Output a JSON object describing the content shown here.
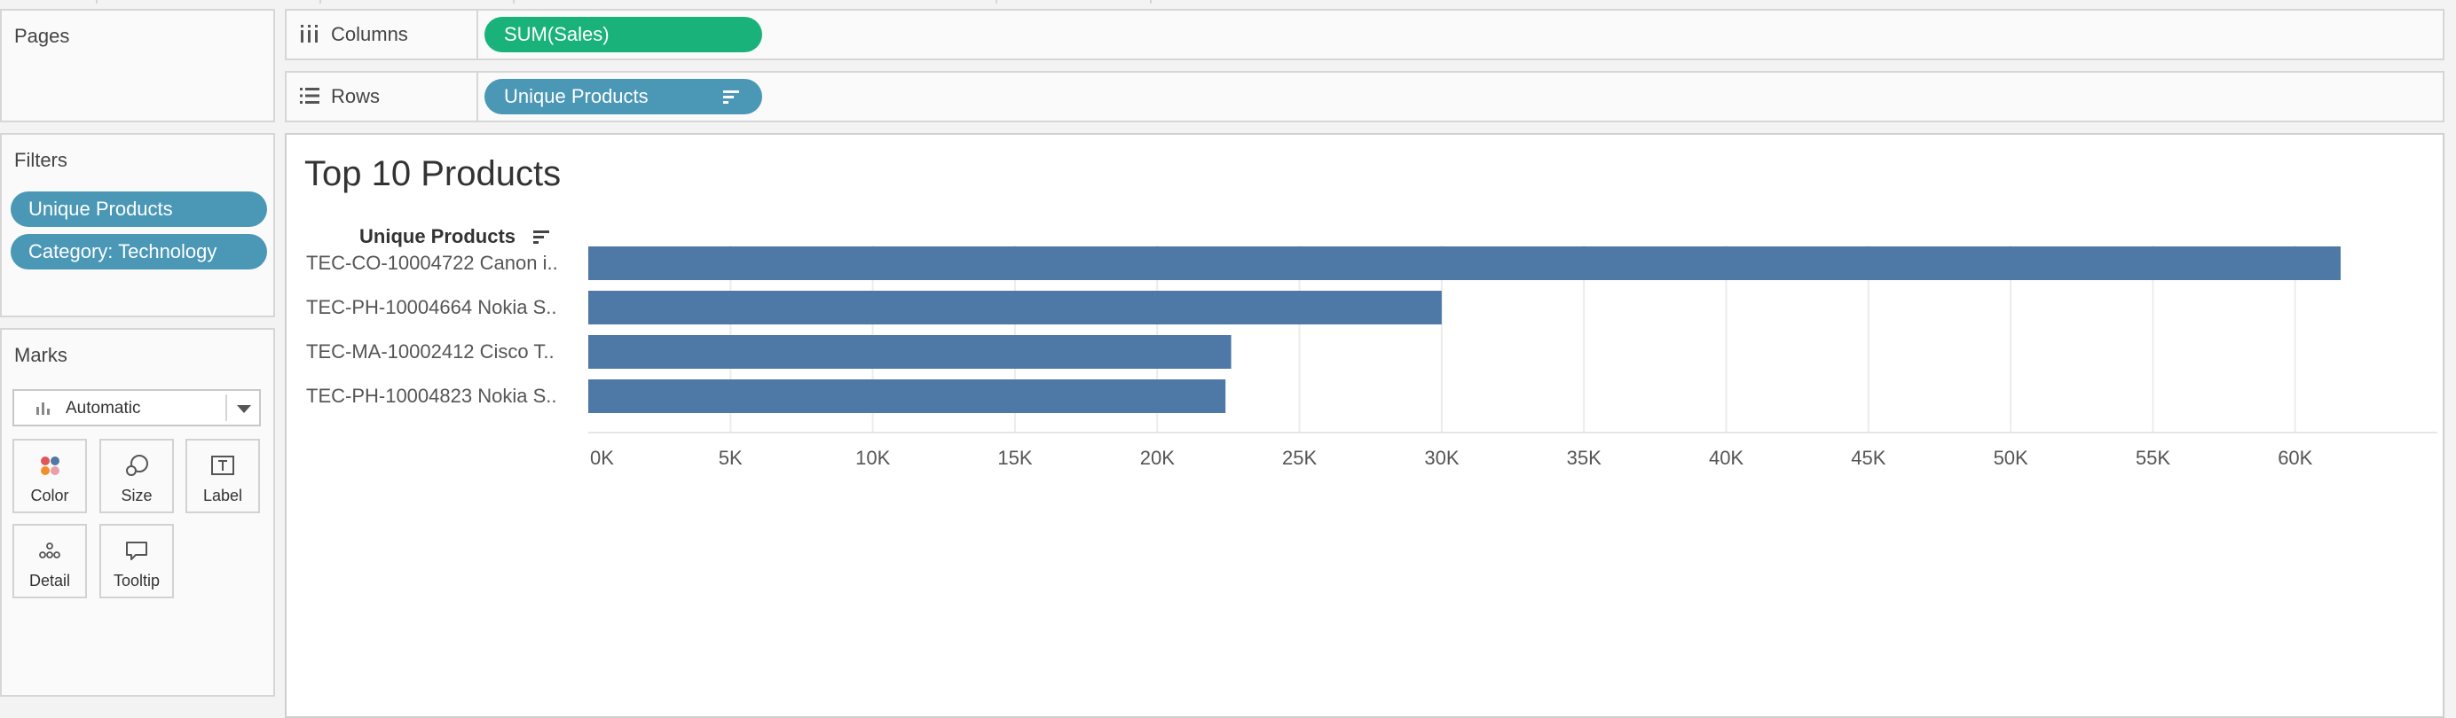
{
  "pages_panel": {
    "title": "Pages"
  },
  "columns_shelf": {
    "label": "Columns",
    "pill": "SUM(Sales)"
  },
  "rows_shelf": {
    "label": "Rows",
    "pill": "Unique Products"
  },
  "filters_panel": {
    "title": "Filters",
    "items": [
      "Unique Products",
      "Category: Technology"
    ]
  },
  "marks_panel": {
    "title": "Marks",
    "mark_type": "Automatic",
    "buttons": [
      "Color",
      "Size",
      "Label",
      "Detail",
      "Tooltip"
    ]
  },
  "view": {
    "title": "Top 10 Products",
    "row_header": "Unique Products"
  },
  "colors": {
    "bar": "#4e79a7",
    "pill_green": "#19b27b",
    "pill_blue": "#4a97b6"
  },
  "chart_data": {
    "type": "bar",
    "orientation": "horizontal",
    "title": "Top 10 Products",
    "categories": [
      "TEC-CO-10004722 Canon i..",
      "TEC-PH-10004664 Nokia S..",
      "TEC-MA-10002412 Cisco T..",
      "TEC-PH-10004823 Nokia S.."
    ],
    "values": [
      61600,
      30000,
      22600,
      22400
    ],
    "xlim": [
      0,
      65000
    ],
    "xticks": [
      "0K",
      "5K",
      "10K",
      "15K",
      "20K",
      "25K",
      "30K",
      "35K",
      "40K",
      "45K",
      "50K",
      "55K",
      "60K"
    ],
    "xtick_values": [
      0,
      5000,
      10000,
      15000,
      20000,
      25000,
      30000,
      35000,
      40000,
      45000,
      50000,
      55000,
      60000
    ],
    "grid": true
  }
}
